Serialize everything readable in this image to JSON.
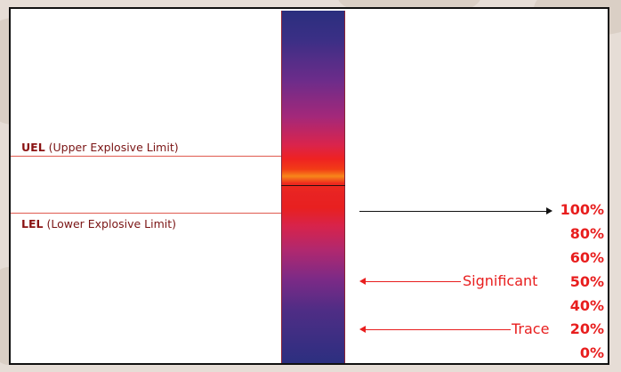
{
  "limits": {
    "uel_abbrev": "UEL",
    "uel_desc": "(Upper Explosive Limit)",
    "lel_abbrev": "LEL",
    "lel_desc": "(Lower Explosive Limit)"
  },
  "scale": {
    "labels": [
      "100%",
      "80%",
      "60%",
      "50%",
      "40%",
      "20%",
      "0%"
    ]
  },
  "annotations": {
    "significant": "Significant",
    "trace": "Trace"
  },
  "colors": {
    "accent_red": "#e81e1e",
    "dark_red": "#8a1212",
    "arrow_black": "#111111"
  }
}
